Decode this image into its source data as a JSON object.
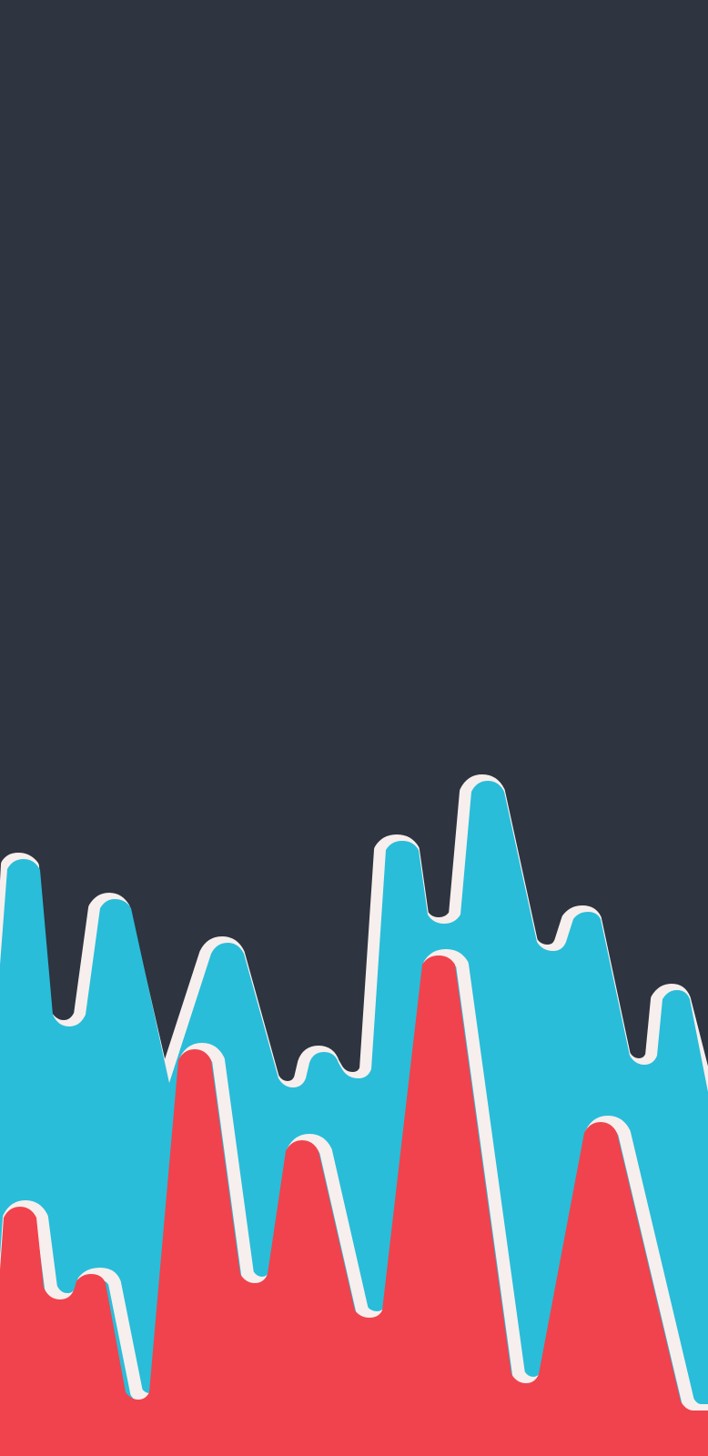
{
  "wallpaper": {
    "colors": {
      "background": "#2e3440",
      "back_layer": "#29bdd9",
      "front_layer": "#f0434e",
      "highlight": "#f7efed"
    }
  }
}
